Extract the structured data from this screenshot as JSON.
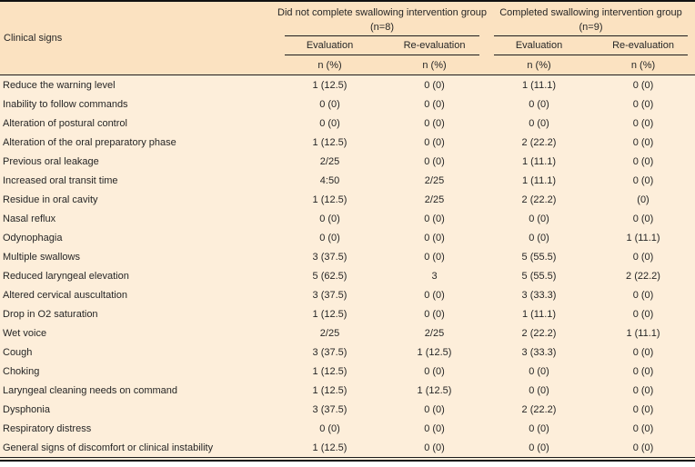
{
  "colors": {
    "header_bg": "#fbe2c1",
    "body_bg": "#fdeeda",
    "rule": "#1c1c1c",
    "text": "#262626"
  },
  "table": {
    "clinical_signs_header": "Clinical signs",
    "groups": [
      {
        "title": "Did not complete swallowing intervention group (n=8)",
        "subcols": [
          "Evaluation",
          "Re-evaluation"
        ],
        "units": [
          "n (%)",
          "n (%)"
        ]
      },
      {
        "title": "Completed swallowing intervention group (n=9)",
        "subcols": [
          "Evaluation",
          "Re-evaluation"
        ],
        "units": [
          "n (%)",
          "n (%)"
        ]
      }
    ],
    "rows": [
      {
        "label": "Reduce the warning level",
        "values": [
          "1 (12.5)",
          "0 (0)",
          "1 (11.1)",
          "0 (0)"
        ]
      },
      {
        "label": "Inability to follow commands",
        "values": [
          "0 (0)",
          "0 (0)",
          "0 (0)",
          "0 (0)"
        ]
      },
      {
        "label": "Alteration of postural control",
        "values": [
          "0 (0)",
          "0 (0)",
          "0 (0)",
          "0 (0)"
        ]
      },
      {
        "label": "Alteration of the oral preparatory phase",
        "values": [
          "1 (12.5)",
          "0 (0)",
          "2 (22.2)",
          "0 (0)"
        ]
      },
      {
        "label": "Previous oral leakage",
        "values": [
          "2/25",
          "0 (0)",
          "1 (11.1)",
          "0 (0)"
        ]
      },
      {
        "label": "Increased oral transit time",
        "values": [
          "4:50",
          "2/25",
          "1 (11.1)",
          "0 (0)"
        ]
      },
      {
        "label": "Residue in oral cavity",
        "values": [
          "1 (12.5)",
          "2/25",
          "2 (22.2)",
          "(0)"
        ]
      },
      {
        "label": "Nasal reflux",
        "values": [
          "0 (0)",
          "0 (0)",
          "0 (0)",
          "0 (0)"
        ]
      },
      {
        "label": "Odynophagia",
        "values": [
          "0 (0)",
          "0 (0)",
          "0 (0)",
          "1 (11.1)"
        ]
      },
      {
        "label": "Multiple swallows",
        "values": [
          "3 (37.5)",
          "0 (0)",
          "5 (55.5)",
          "0 (0)"
        ]
      },
      {
        "label": "Reduced laryngeal elevation",
        "values": [
          "5 (62.5)",
          "3",
          "5 (55.5)",
          "2 (22.2)"
        ]
      },
      {
        "label": "Altered cervical auscultation",
        "values": [
          "3 (37.5)",
          "0 (0)",
          "3 (33.3)",
          "0 (0)"
        ]
      },
      {
        "label": "Drop in O2 saturation",
        "values": [
          "1 (12.5)",
          "0 (0)",
          "1 (11.1)",
          "0 (0)"
        ]
      },
      {
        "label": "Wet voice",
        "values": [
          "2/25",
          "2/25",
          "2 (22.2)",
          "1 (11.1)"
        ]
      },
      {
        "label": "Cough",
        "values": [
          "3 (37.5)",
          "1 (12.5)",
          "3 (33.3)",
          "0 (0)"
        ]
      },
      {
        "label": "Choking",
        "values": [
          "1 (12.5)",
          "0 (0)",
          "0 (0)",
          "0 (0)"
        ]
      },
      {
        "label": "Laryngeal cleaning needs on command",
        "values": [
          "1 (12.5)",
          "1 (12.5)",
          "0 (0)",
          "0 (0)"
        ]
      },
      {
        "label": "Dysphonia",
        "values": [
          "3 (37.5)",
          "0 (0)",
          "2 (22.2)",
          "0 (0)"
        ]
      },
      {
        "label": "Respiratory distress",
        "values": [
          "0 (0)",
          "0 (0)",
          "0 (0)",
          "0 (0)"
        ]
      },
      {
        "label": "General signs of discomfort or clinical instability",
        "values": [
          "1 (12.5)",
          "0 (0)",
          "0 (0)",
          "0 (0)"
        ]
      }
    ]
  }
}
